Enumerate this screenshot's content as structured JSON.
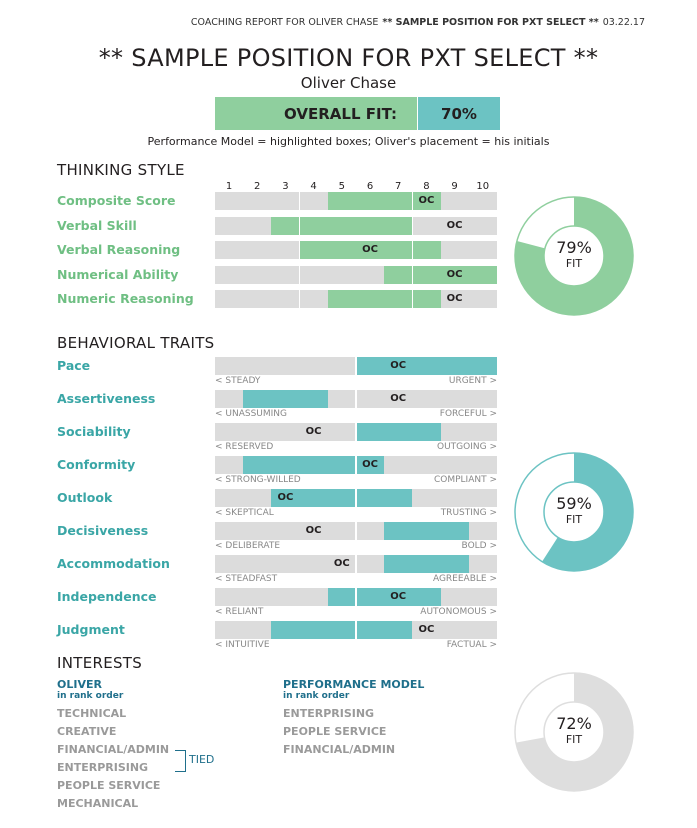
{
  "header": {
    "report": "COACHING REPORT FOR OLIVER CHASE",
    "position": "** SAMPLE POSITION FOR PXT SELECT **",
    "date": "03.22.17"
  },
  "title": "** SAMPLE POSITION FOR PXT SELECT **",
  "candidate": "Oliver Chase",
  "overall_fit": {
    "label": "OVERALL FIT:",
    "value": "70%"
  },
  "legend": "Performance Model = highlighted boxes; Oliver's placement = his initials",
  "initials": "OC",
  "colors": {
    "thinking": "#8fcf9e",
    "behavioral": "#6cc3c3",
    "interests": "#dedede",
    "label_thinking": "#6fbf83",
    "label_behavioral": "#3aa6a6"
  },
  "thinking": {
    "title": "THINKING STYLE",
    "scale": [
      "1",
      "2",
      "3",
      "4",
      "5",
      "6",
      "7",
      "8",
      "9",
      "10"
    ],
    "rows": [
      {
        "label": "Composite Score",
        "range": [
          5,
          8
        ],
        "oc": 8
      },
      {
        "label": "Verbal Skill",
        "range": [
          3,
          7
        ],
        "oc": 9
      },
      {
        "label": "Verbal Reasoning",
        "range": [
          4,
          8
        ],
        "oc": 6
      },
      {
        "label": "Numerical Ability",
        "range": [
          7,
          10
        ],
        "oc": 9
      },
      {
        "label": "Numeric Reasoning",
        "range": [
          5,
          8
        ],
        "oc": 9
      }
    ],
    "fit": {
      "percent": 79,
      "text": "79%",
      "label": "FIT"
    }
  },
  "behavioral": {
    "title": "BEHAVIORAL TRAITS",
    "rows": [
      {
        "label": "Pace",
        "range": [
          6,
          10
        ],
        "oc": 7,
        "left": "< STEADY",
        "right": "URGENT >"
      },
      {
        "label": "Assertiveness",
        "range": [
          2,
          4
        ],
        "oc": 7,
        "left": "< UNASSUMING",
        "right": "FORCEFUL >"
      },
      {
        "label": "Sociability",
        "range": [
          6,
          8
        ],
        "oc": 4,
        "left": "< RESERVED",
        "right": "OUTGOING >"
      },
      {
        "label": "Conformity",
        "range": [
          2,
          6
        ],
        "oc": 6,
        "left": "< STRONG-WILLED",
        "right": "COMPLIANT >"
      },
      {
        "label": "Outlook",
        "range": [
          3,
          7
        ],
        "oc": 3,
        "left": "< SKEPTICAL",
        "right": "TRUSTING >"
      },
      {
        "label": "Decisiveness",
        "range": [
          7,
          9
        ],
        "oc": 4,
        "left": "< DELIBERATE",
        "right": "BOLD >"
      },
      {
        "label": "Accommodation",
        "range": [
          7,
          9
        ],
        "oc": 5,
        "left": "< STEADFAST",
        "right": "AGREEABLE >"
      },
      {
        "label": "Independence",
        "range": [
          5,
          8
        ],
        "oc": 7,
        "left": "< RELIANT",
        "right": "AUTONOMOUS >"
      },
      {
        "label": "Judgment",
        "range": [
          3,
          7
        ],
        "oc": 8,
        "left": "< INTUITIVE",
        "right": "FACTUAL >"
      }
    ],
    "fit": {
      "percent": 59,
      "text": "59%",
      "label": "FIT"
    }
  },
  "interests": {
    "title": "INTERESTS",
    "oliver": {
      "heading": "OLIVER",
      "sub": "in rank order",
      "items": [
        "TECHNICAL",
        "CREATIVE",
        "FINANCIAL/ADMIN",
        "ENTERPRISING",
        "PEOPLE SERVICE",
        "MECHANICAL"
      ],
      "tied": "TIED"
    },
    "model": {
      "heading": "PERFORMANCE MODEL",
      "sub": "in rank order",
      "items": [
        "ENTERPRISING",
        "PEOPLE SERVICE",
        "FINANCIAL/ADMIN"
      ]
    },
    "fit": {
      "percent": 72,
      "text": "72%",
      "label": "FIT"
    }
  }
}
